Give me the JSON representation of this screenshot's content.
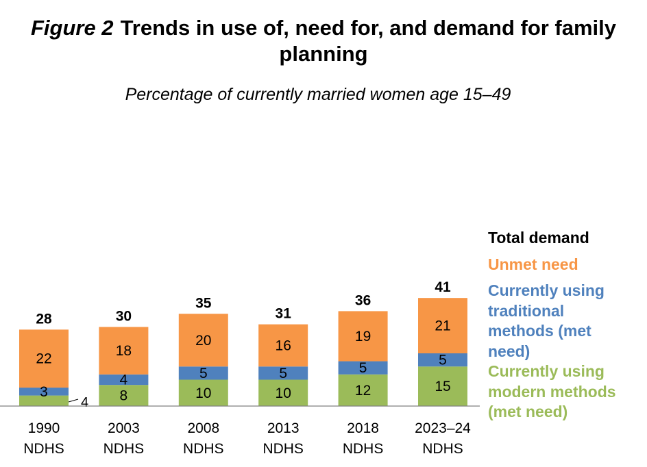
{
  "figure": {
    "label": "Figure 2",
    "title": "Trends in use of, need for, and demand for family planning",
    "subtitle": "Percentage of currently married women age 15–49"
  },
  "colors": {
    "modern": "#9bbb59",
    "traditional": "#4f81bd",
    "unmet": "#f79646"
  },
  "chart_data": {
    "type": "bar",
    "stacked": true,
    "title": "Trends in use of, need for, and demand for family planning",
    "subtitle": "Percentage of currently married women age 15–49",
    "categories": [
      [
        "1990",
        "NDHS"
      ],
      [
        "2003",
        "NDHS"
      ],
      [
        "2008",
        "NDHS"
      ],
      [
        "2013",
        "NDHS"
      ],
      [
        "2018",
        "NDHS"
      ],
      [
        "2023–24",
        "NDHS"
      ]
    ],
    "series": [
      {
        "name": "Currently using modern methods (met need)",
        "values": [
          4,
          8,
          10,
          10,
          12,
          15
        ]
      },
      {
        "name": "Currently using traditional methods (met need)",
        "values": [
          3,
          4,
          5,
          5,
          5,
          5
        ]
      },
      {
        "name": "Unmet need",
        "values": [
          22,
          18,
          20,
          16,
          19,
          21
        ]
      }
    ],
    "totals_name": "Total demand",
    "totals": [
      28,
      30,
      35,
      31,
      36,
      41
    ],
    "ylim": [
      0,
      41
    ],
    "grid": false,
    "legend_position": "right"
  },
  "legend": {
    "total": "Total demand",
    "unmet": "Unmet need",
    "traditional": "Currently using\ntraditional\nmethods (met\nneed)",
    "modern": "Currently using\nmodern methods\n(met need)"
  }
}
